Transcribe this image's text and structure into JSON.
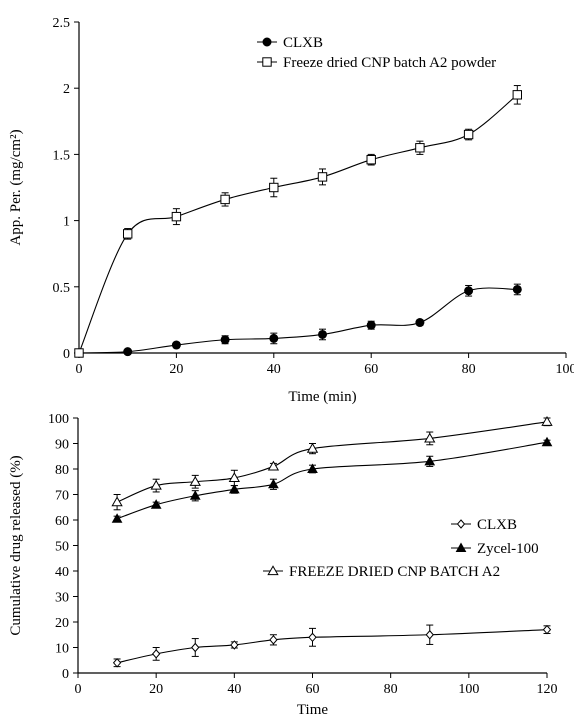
{
  "chart_data": [
    {
      "type": "line",
      "title": "",
      "xlabel": "Time (min)",
      "ylabel": "App. Per. (mg/cm²)",
      "xlim": [
        0,
        100
      ],
      "ylim": [
        0,
        2.5
      ],
      "xticks": [
        "0",
        "20",
        "40",
        "60",
        "80",
        "100"
      ],
      "yticks": [
        "0",
        "0.5",
        "1",
        "1.5",
        "2",
        "2.5"
      ],
      "grid": false,
      "legend_position": "top-right",
      "series": [
        {
          "name": "CLXB",
          "marker": "filled-circle",
          "x": [
            0,
            10,
            20,
            30,
            40,
            50,
            60,
            70,
            80,
            90
          ],
          "y": [
            0,
            0.01,
            0.06,
            0.1,
            0.11,
            0.14,
            0.21,
            0.23,
            0.47,
            0.48
          ],
          "err": [
            0,
            0.01,
            0.02,
            0.03,
            0.04,
            0.04,
            0.03,
            0.02,
            0.04,
            0.04
          ]
        },
        {
          "name": "Freeze dried CNP batch A2 powder",
          "marker": "open-square",
          "x": [
            0,
            10,
            20,
            30,
            40,
            50,
            60,
            70,
            80,
            90
          ],
          "y": [
            0,
            0.9,
            1.03,
            1.16,
            1.25,
            1.33,
            1.46,
            1.55,
            1.65,
            1.95
          ],
          "err": [
            0,
            0.04,
            0.06,
            0.05,
            0.07,
            0.06,
            0.04,
            0.05,
            0.04,
            0.07
          ]
        }
      ]
    },
    {
      "type": "line",
      "title": "",
      "xlabel": "Time",
      "ylabel": "Cumulative  drug released (%)",
      "xlim": [
        0,
        120
      ],
      "ylim": [
        0,
        100
      ],
      "xticks": [
        "0",
        "20",
        "40",
        "60",
        "80",
        "100",
        "120"
      ],
      "yticks": [
        "0",
        "10",
        "20",
        "30",
        "40",
        "50",
        "60",
        "70",
        "80",
        "90",
        "100"
      ],
      "grid": false,
      "legend_position": "center-right",
      "series": [
        {
          "name": "CLXB",
          "marker": "open-diamond",
          "x": [
            10,
            20,
            30,
            40,
            50,
            60,
            90,
            120
          ],
          "y": [
            4,
            7.5,
            10,
            11,
            13,
            14,
            15,
            17
          ],
          "err": [
            1.5,
            2.5,
            3.5,
            1.2,
            2,
            3.5,
            3.8,
            1.5
          ]
        },
        {
          "name": "Zycel-100",
          "marker": "filled-triangle",
          "x": [
            10,
            20,
            30,
            40,
            50,
            60,
            90,
            120
          ],
          "y": [
            60.5,
            66,
            69.5,
            72,
            74,
            80,
            83,
            90.5
          ],
          "err": [
            1,
            1,
            2,
            1.5,
            2,
            1.5,
            2,
            0.8
          ]
        },
        {
          "name": "FREEZE DRIED CNP BATCH A2",
          "marker": "open-triangle",
          "x": [
            10,
            20,
            30,
            40,
            50,
            60,
            90,
            120
          ],
          "y": [
            67,
            73.5,
            75,
            76.5,
            81,
            88,
            92,
            98.5
          ],
          "err": [
            3,
            2.5,
            2.5,
            3,
            1.2,
            2,
            2.5,
            1.5
          ]
        }
      ]
    }
  ]
}
